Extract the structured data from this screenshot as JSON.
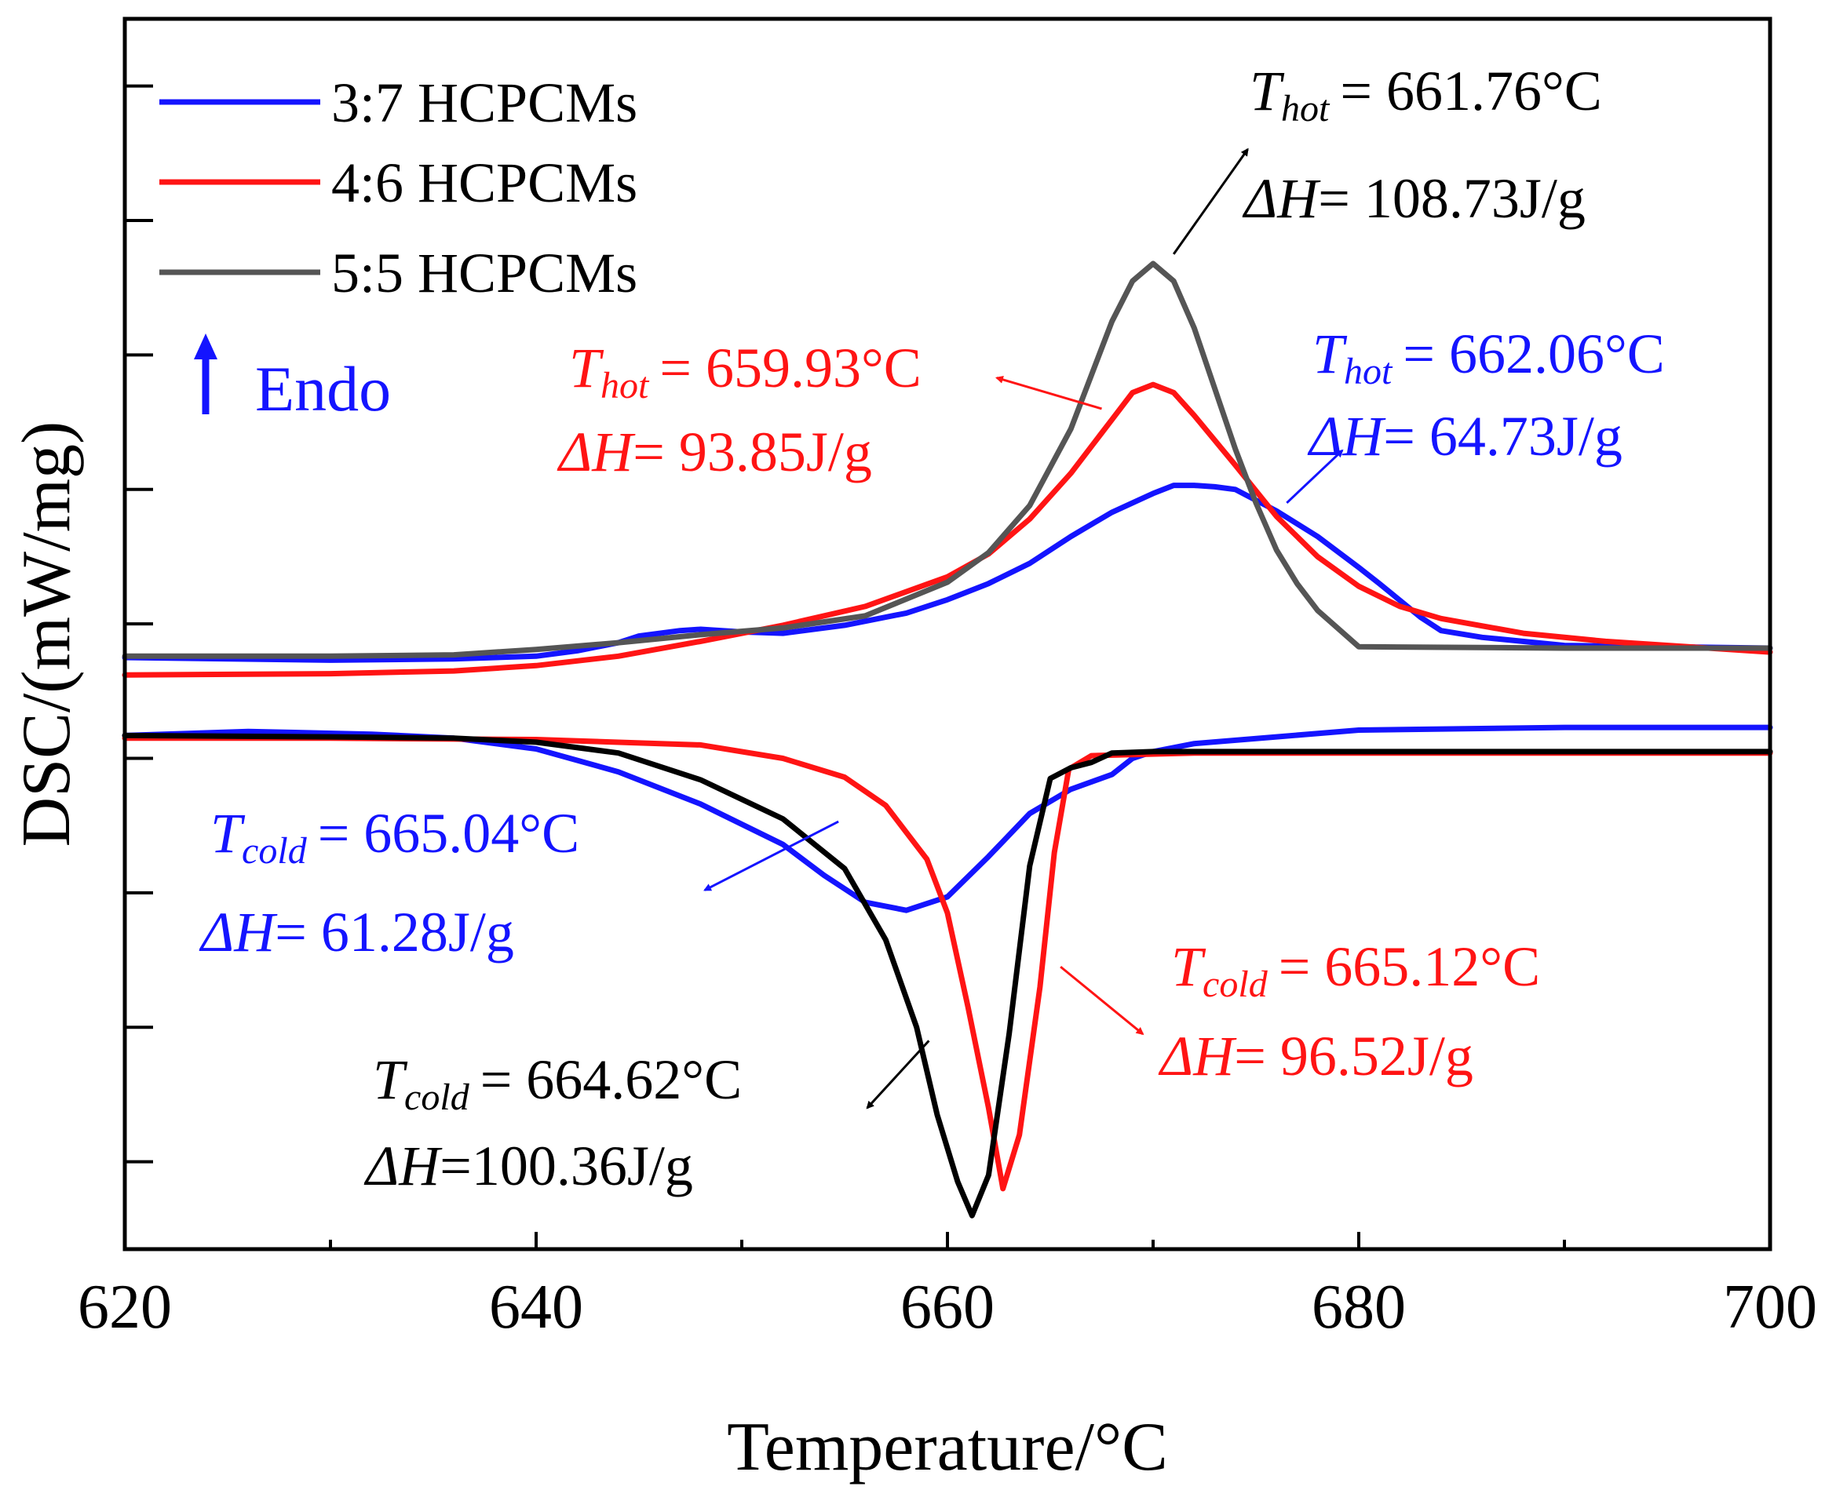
{
  "chart_data": {
    "type": "line",
    "title": "",
    "xlabel": "Temperature/°C",
    "ylabel": "DSC/(mW/mg)",
    "xlim": [
      620,
      700
    ],
    "ylim": [
      -4.65,
      4.5
    ],
    "x_ticks": [
      620,
      640,
      660,
      680,
      700
    ],
    "x_ticks_minor": [
      630,
      650,
      670,
      690
    ],
    "y_ticks_unlabeled": [
      4,
      3,
      2,
      1,
      0,
      -1,
      -2,
      -3,
      -4
    ],
    "legend": {
      "position": "top-left"
    },
    "endo_label": "Endo",
    "colors": {
      "blue": "#1414ff",
      "red": "#ff1414",
      "gray": "#555555",
      "black": "#000000",
      "endo_arrow": "#1414ff"
    },
    "series": [
      {
        "name": "3:7 HCPCMs",
        "color": "#1414ff",
        "segment": "heating",
        "x": [
          620,
          630,
          636,
          640,
          642,
          644,
          645,
          647,
          648,
          650,
          652,
          655,
          658,
          660,
          662,
          664,
          666,
          668,
          670,
          671,
          672,
          673,
          674,
          676,
          678,
          680,
          681,
          683,
          684,
          686,
          690,
          700
        ],
        "y": [
          -0.25,
          -0.27,
          -0.26,
          -0.24,
          -0.2,
          -0.14,
          -0.09,
          -0.05,
          -0.04,
          -0.06,
          -0.07,
          -0.01,
          0.08,
          0.18,
          0.3,
          0.45,
          0.65,
          0.83,
          0.97,
          1.03,
          1.03,
          1.02,
          1.0,
          0.84,
          0.65,
          0.42,
          0.3,
          0.05,
          -0.05,
          -0.1,
          -0.16,
          -0.18
        ]
      },
      {
        "name": "4:6 HCPCMs",
        "color": "#ff1414",
        "segment": "heating",
        "x": [
          620,
          630,
          636,
          640,
          644,
          648,
          652,
          656,
          660,
          662,
          664,
          666,
          668,
          669,
          670,
          671,
          672,
          674,
          676,
          678,
          680,
          682,
          684,
          688,
          692,
          696,
          700
        ],
        "y": [
          -0.38,
          -0.37,
          -0.35,
          -0.31,
          -0.24,
          -0.13,
          -0.01,
          0.13,
          0.35,
          0.52,
          0.78,
          1.12,
          1.52,
          1.72,
          1.78,
          1.72,
          1.55,
          1.18,
          0.8,
          0.5,
          0.28,
          0.13,
          0.04,
          -0.07,
          -0.13,
          -0.17,
          -0.21
        ]
      },
      {
        "name": "5:5 HCPCMs",
        "color": "#555555",
        "segment": "heating",
        "x": [
          620,
          630,
          636,
          640,
          644,
          648,
          652,
          656,
          660,
          662,
          664,
          666,
          667,
          668,
          669,
          670,
          671,
          672,
          673,
          674,
          675,
          676,
          677,
          678,
          680,
          690,
          700
        ],
        "y": [
          -0.24,
          -0.24,
          -0.23,
          -0.19,
          -0.14,
          -0.08,
          -0.03,
          0.06,
          0.31,
          0.53,
          0.88,
          1.45,
          1.85,
          2.25,
          2.55,
          2.68,
          2.55,
          2.2,
          1.75,
          1.3,
          0.9,
          0.55,
          0.3,
          0.1,
          -0.17,
          -0.18,
          -0.18
        ]
      },
      {
        "name": "3:7 HCPCMs",
        "color": "#1414ff",
        "segment": "cooling",
        "x": [
          620,
          626,
          632,
          636,
          640,
          644,
          648,
          652,
          654,
          656,
          658,
          660,
          662,
          664,
          666,
          668,
          669,
          670,
          672,
          676,
          680,
          690,
          700
        ],
        "y": [
          -0.83,
          -0.8,
          -0.82,
          -0.85,
          -0.93,
          -1.1,
          -1.34,
          -1.64,
          -1.87,
          -2.07,
          -2.13,
          -2.03,
          -1.73,
          -1.41,
          -1.23,
          -1.12,
          -1.0,
          -0.95,
          -0.89,
          -0.84,
          -0.79,
          -0.77,
          -0.77
        ]
      },
      {
        "name": "4:6 HCPCMs",
        "color": "#ff1414",
        "segment": "cooling",
        "x": [
          620,
          630,
          640,
          648,
          652,
          655,
          657,
          659,
          660,
          661,
          662,
          662.7,
          663.5,
          664.5,
          665.2,
          665.9,
          667,
          672,
          680,
          690,
          700
        ],
        "y": [
          -0.85,
          -0.85,
          -0.86,
          -0.9,
          -1.0,
          -1.14,
          -1.35,
          -1.75,
          -2.15,
          -2.85,
          -3.6,
          -4.2,
          -3.8,
          -2.7,
          -1.7,
          -1.08,
          -0.98,
          -0.96,
          -0.96,
          -0.96,
          -0.96
        ]
      },
      {
        "name": "5:5 HCPCMs",
        "color": "#000000",
        "segment": "cooling",
        "x": [
          620,
          630,
          636,
          640,
          644,
          648,
          652,
          655,
          657,
          658.5,
          659.5,
          660.5,
          661.2,
          662,
          663,
          664,
          665,
          666,
          667,
          668,
          670,
          680,
          700
        ],
        "y": [
          -0.83,
          -0.84,
          -0.85,
          -0.88,
          -0.96,
          -1.16,
          -1.45,
          -1.82,
          -2.35,
          -3.0,
          -3.65,
          -4.15,
          -4.4,
          -4.1,
          -3.05,
          -1.8,
          -1.15,
          -1.07,
          -1.03,
          -0.96,
          -0.95,
          -0.95,
          -0.95
        ]
      }
    ],
    "annotations": [
      {
        "name": "ann-55-heating",
        "color": "#000000",
        "t_prefix": "T",
        "t_sub": "hot",
        "t_value": "= 661.76°C",
        "h_prefix": "ΔH",
        "h_value": "= 108.73J/g",
        "arrow_from": [
          671,
          2.75
        ],
        "arrow_to": [
          674.6,
          3.53
        ]
      },
      {
        "name": "ann-46-heating",
        "color": "#ff1414",
        "t_prefix": "T",
        "t_sub": "hot",
        "t_value": "= 659.93°C",
        "h_prefix": "ΔH",
        "h_value": "= 93.85J/g",
        "arrow_from": [
          667.5,
          1.6
        ],
        "arrow_to": [
          662.4,
          1.83
        ]
      },
      {
        "name": "ann-37-heating",
        "color": "#1414ff",
        "t_prefix": "T",
        "t_sub": "hot",
        "t_value": "= 662.06°C",
        "h_prefix": "ΔH",
        "h_value": "= 64.73J/g",
        "arrow_from": [
          676.5,
          0.9
        ],
        "arrow_to": [
          679.2,
          1.29
        ]
      },
      {
        "name": "ann-37-cooling",
        "color": "#1414ff",
        "t_prefix": "T",
        "t_sub": "cold",
        "t_value": "= 665.04°C",
        "h_prefix": "ΔH",
        "h_value": "= 61.28J/g",
        "arrow_from": [
          654.7,
          -1.47
        ],
        "arrow_to": [
          648.2,
          -1.98
        ]
      },
      {
        "name": "ann-46-cooling",
        "color": "#ff1414",
        "t_prefix": "T",
        "t_sub": "cold",
        "t_value": "= 665.12°C",
        "h_prefix": "ΔH",
        "h_value": "= 96.52J/g",
        "arrow_from": [
          665.5,
          -2.55
        ],
        "arrow_to": [
          669.5,
          -3.05
        ]
      },
      {
        "name": "ann-55-cooling",
        "color": "#000000",
        "t_prefix": "T",
        "t_sub": "cold",
        "t_value": "= 664.62°C",
        "h_prefix": "ΔH",
        "h_value": "=100.36J/g",
        "arrow_from": [
          659.1,
          -3.1
        ],
        "arrow_to": [
          656.1,
          -3.6
        ]
      }
    ]
  }
}
